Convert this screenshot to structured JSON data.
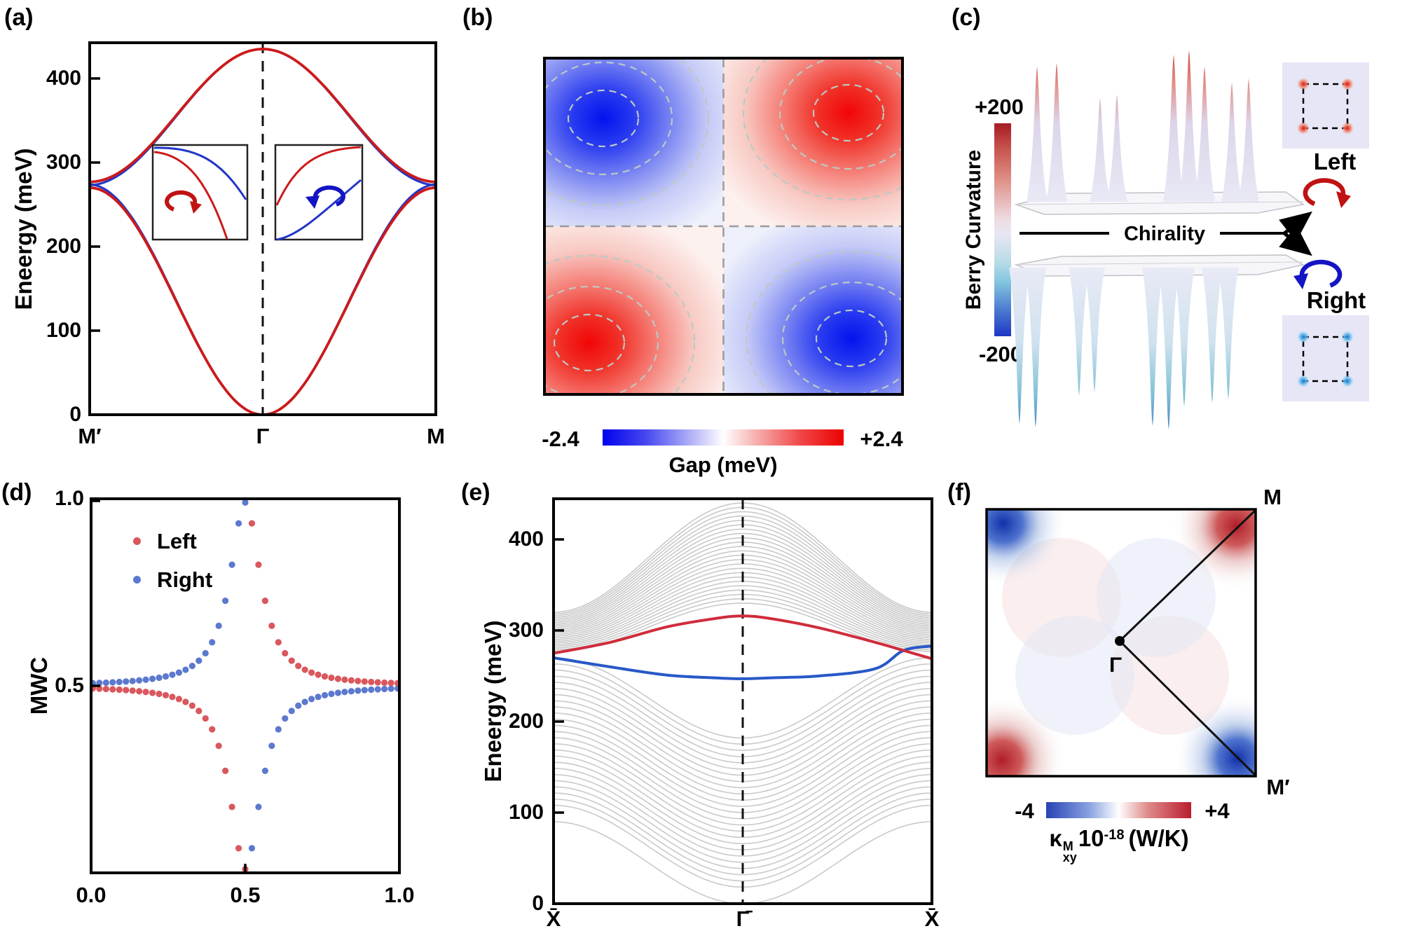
{
  "figure": {
    "a": {
      "label": "(a)",
      "ylabel": "Eneergy (meV)",
      "yticks": [
        "400",
        "300",
        "200",
        "100",
        "0"
      ],
      "xticks": [
        "M′",
        "Γ",
        "M"
      ]
    },
    "b": {
      "label": "(b)",
      "cbar_min": "-2.4",
      "cbar_max": "+2.4",
      "cbar_label": "Gap (meV)"
    },
    "c": {
      "label": "(c)",
      "cbar_max": "+200",
      "cbar_min": "-200",
      "cbar_label": "Berry Curvature",
      "chirality": "Chirality",
      "left": "Left",
      "right": "Right"
    },
    "d": {
      "label": "(d)",
      "ylabel": "MWC",
      "yticks": [
        "1.0",
        "0.5"
      ],
      "xticks": [
        "0.0",
        "0.5",
        "1.0"
      ],
      "legend": [
        "Left",
        "Right"
      ]
    },
    "e": {
      "label": "(e)",
      "ylabel": "Eneergy (meV)",
      "yticks": [
        "400",
        "300",
        "200",
        "100",
        "0"
      ],
      "xticks": [
        "X̄",
        "Γ̄",
        "X̄"
      ]
    },
    "f": {
      "label": "(f)",
      "cbar_min": "-4",
      "cbar_max": "+4",
      "kappa": "κ",
      "kappa_sup": "M",
      "kappa_sub": "xy",
      "kappa_base": "10",
      "kappa_exp": "-18",
      "kappa_unit": "(W/K)",
      "gamma": "Γ",
      "m": "M",
      "m_prime": "M′"
    }
  },
  "colors": {
    "band_red": "#cc1a1a",
    "band_blue": "#2236c8",
    "dot_red": "#d9575d",
    "dot_blue": "#5c79ce",
    "gray_band": "#c9c9c9",
    "edge_red": "#d02c3c",
    "edge_blue": "#2858c8",
    "cbar_blue": "#0202ec",
    "cbar_red": "#ec0202"
  },
  "chart_data": [
    {
      "id": "a",
      "type": "line",
      "ylabel": "Eneergy (meV)",
      "xticklabels": [
        "M′",
        "Γ",
        "M"
      ],
      "yticks": [
        0,
        100,
        200,
        300,
        400
      ],
      "ylim": [
        0,
        442
      ],
      "model": {
        "upper_band": {
          "E_at_gamma": 435,
          "E_at_M": 277
        },
        "lower_band": {
          "E_at_gamma": 0,
          "E_at_M": 270
        },
        "chirality_splitting_meV": 4
      },
      "series": [
        {
          "name": "left chirality",
          "color": "#cc1a1a"
        },
        {
          "name": "right chirality",
          "color": "#2236c8"
        }
      ]
    },
    {
      "id": "b",
      "type": "heatmap",
      "colorbar": {
        "min": -2.4,
        "max": 2.4,
        "min_label": "-2.4",
        "max_label": "+2.4",
        "label": "Gap (meV)"
      },
      "quadrant_signs": {
        "top_left": -1,
        "top_right": 1,
        "bottom_left": 1,
        "bottom_right": -1
      }
    },
    {
      "id": "c",
      "type": "surface",
      "colorbar": {
        "min": -200,
        "max": 200,
        "min_label": "-200",
        "max_label": "+200",
        "label": "Berry Curvature"
      },
      "annotations": [
        "Chirality",
        "Left",
        "Right"
      ],
      "top_base_y": 228,
      "bottom_base_y": 322,
      "top_spikes": [
        [
          35,
          35
        ],
        [
          63,
          30
        ],
        [
          125,
          80
        ],
        [
          149,
          75
        ],
        [
          230,
          18
        ],
        [
          252,
          12
        ],
        [
          274,
          35
        ],
        [
          313,
          58
        ],
        [
          337,
          52
        ]
      ],
      "bottom_spikes": [
        [
          10,
          545
        ],
        [
          33,
          550
        ],
        [
          95,
          505
        ],
        [
          117,
          500
        ],
        [
          200,
          548
        ],
        [
          223,
          553
        ],
        [
          245,
          520
        ],
        [
          285,
          515
        ],
        [
          308,
          510
        ]
      ]
    },
    {
      "id": "d",
      "type": "scatter",
      "ylabel": "MWC",
      "xticks": [
        0,
        0.5,
        1
      ],
      "yticks": [
        0.5,
        1
      ],
      "xlim": [
        0,
        1
      ],
      "ylim": [
        0,
        1
      ],
      "series": [
        {
          "name": "Left",
          "color": "#d9575d"
        },
        {
          "name": "Right",
          "color": "#5c79ce"
        }
      ],
      "model": {
        "x_start": 0.0055,
        "x_step": 0.0215,
        "n": 47,
        "lorentz_w": 0.06,
        "amp": 0.49,
        "baseline": 0.5,
        "peak_x": 0.5,
        "peak_y": 0.99
      }
    },
    {
      "id": "e",
      "type": "line",
      "ylabel": "Eneergy (meV)",
      "xticklabels": [
        "X̄",
        "Γ̄",
        "X̄"
      ],
      "yticks": [
        0,
        100,
        200,
        300,
        400
      ],
      "ylim": [
        0,
        444
      ],
      "bulk": {
        "upper": {
          "center_range": [
            330,
            440
          ],
          "edge_range": [
            277,
            320
          ],
          "count": 24
        },
        "lower": {
          "center_range": [
            0,
            182
          ],
          "edge_range": [
            90,
            270
          ],
          "count": 26
        }
      },
      "edge_red": {
        "k": [
          -1,
          -0.7,
          -0.4,
          -0.15,
          0,
          0.15,
          0.4,
          0.7,
          0.85,
          1
        ],
        "E": [
          275,
          287,
          304,
          313,
          316,
          313,
          303,
          287,
          278,
          269
        ]
      },
      "edge_blue": {
        "k": [
          -1,
          -0.7,
          -0.4,
          -0.15,
          0,
          0.15,
          0.4,
          0.7,
          0.85,
          1
        ],
        "E": [
          270,
          260,
          251,
          248,
          247,
          248,
          250,
          258,
          278,
          283
        ]
      }
    },
    {
      "id": "f",
      "type": "heatmap",
      "colorbar": {
        "min": -4,
        "max": 4,
        "min_label": "-4",
        "max_label": "+4",
        "label": "κ_xy^M 10^-18 (W/K)"
      },
      "kpoints": [
        "Γ",
        "M",
        "M′"
      ],
      "corner_signs": {
        "top_left": -1,
        "top_right": 1,
        "bottom_left": 1,
        "bottom_right": -1
      }
    }
  ]
}
